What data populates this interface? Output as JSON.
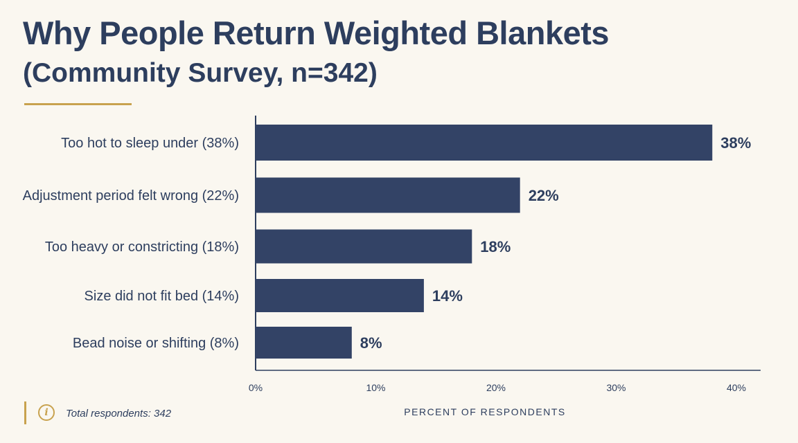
{
  "chart_data": {
    "type": "bar",
    "orientation": "horizontal",
    "title": "Why People Return Weighted Blankets",
    "subtitle": "(Community Survey, n=342)",
    "categories": [
      "Too hot to sleep under (38%)",
      "Adjustment period felt wrong (22%)",
      "Too heavy or constricting (18%)",
      "Size did not fit bed (14%)",
      "Bead noise or shifting (8%)"
    ],
    "values": [
      38,
      22,
      18,
      14,
      8
    ],
    "value_labels": [
      "38%",
      "22%",
      "18%",
      "14%",
      "8%"
    ],
    "xlabel": "PERCENT OF RESPONDENTS",
    "ylabel": "",
    "xlim": [
      0,
      40
    ],
    "xticks": [
      "0%",
      "10%",
      "20%",
      "30%",
      "40%"
    ],
    "grid": false,
    "bar_color": "#334366"
  },
  "footer": {
    "info_icon": "info-icon",
    "note": "Total respondents: 342"
  },
  "colors": {
    "background": "#faf7f0",
    "text": "#2d3e5e",
    "accent": "#c8a24e",
    "bar": "#334366"
  }
}
